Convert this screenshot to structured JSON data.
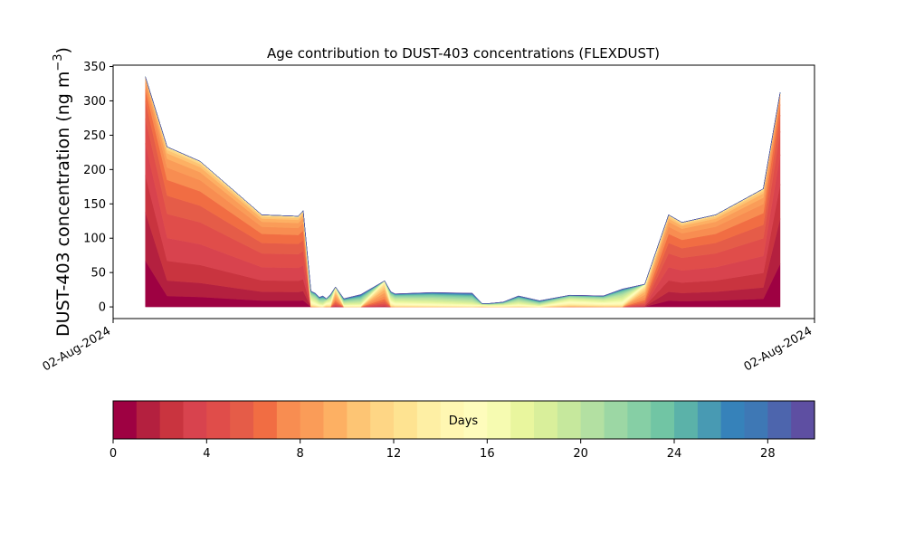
{
  "chart_data": {
    "type": "area",
    "title": "Age contribution to DUST-403 concentrations (FLEXDUST)",
    "ylabel": "DUST-403 concentration (ng m",
    "ylabel_unit_sup": "−3",
    "ylabel_close": ")",
    "xlabel": "",
    "x_tick_labels": [
      "02-Aug-2024",
      "02-Aug-2024"
    ],
    "ylim": [
      -17,
      352
    ],
    "y_ticks": [
      0,
      50,
      100,
      150,
      200,
      250,
      300,
      350
    ],
    "grid": false,
    "total_profile": {
      "x_rel": [
        0.046,
        0.077,
        0.124,
        0.212,
        0.264,
        0.271,
        0.282,
        0.288,
        0.294,
        0.299,
        0.304,
        0.31,
        0.317,
        0.329,
        0.353,
        0.387,
        0.396,
        0.402,
        0.455,
        0.512,
        0.526,
        0.536,
        0.556,
        0.578,
        0.608,
        0.651,
        0.699,
        0.726,
        0.758,
        0.792,
        0.811,
        0.859,
        0.927,
        0.951
      ],
      "total": [
        335,
        233,
        212,
        134,
        132,
        140,
        23,
        20,
        14,
        16,
        12,
        18,
        29,
        12,
        18,
        38,
        22,
        19,
        21,
        20,
        5,
        5,
        7,
        16,
        9,
        17,
        16,
        26,
        33,
        134,
        123,
        134,
        172,
        312
      ]
    },
    "age_bins_days": [
      0,
      1,
      2,
      3,
      4,
      5,
      6,
      7,
      8,
      9,
      10,
      11,
      12,
      13,
      14,
      15,
      16,
      17,
      18,
      19,
      20,
      21,
      22,
      23,
      24,
      25,
      26,
      27,
      28,
      29,
      30
    ],
    "age_colors": [
      "#9e0142",
      "#b4203f",
      "#c9343f",
      "#d8434e",
      "#e04d4a",
      "#e55c48",
      "#f16d43",
      "#f88d51",
      "#fa9c58",
      "#fdb063",
      "#fdc574",
      "#fed685",
      "#fee391",
      "#feefa4",
      "#fff7b2",
      "#fefcbc",
      "#f6fbb1",
      "#e9f69e",
      "#d9ef9b",
      "#c6e89d",
      "#b3e0a2",
      "#9cd7a4",
      "#86cfa5",
      "#71c5a4",
      "#5bb2a9",
      "#489ab3",
      "#3682ba",
      "#3e78b5",
      "#4d65ad",
      "#5e4fa2"
    ],
    "colorbar": {
      "label": "Days",
      "range": [
        0,
        30
      ],
      "ticks": [
        0,
        4,
        8,
        12,
        16,
        20,
        24,
        28
      ]
    }
  }
}
